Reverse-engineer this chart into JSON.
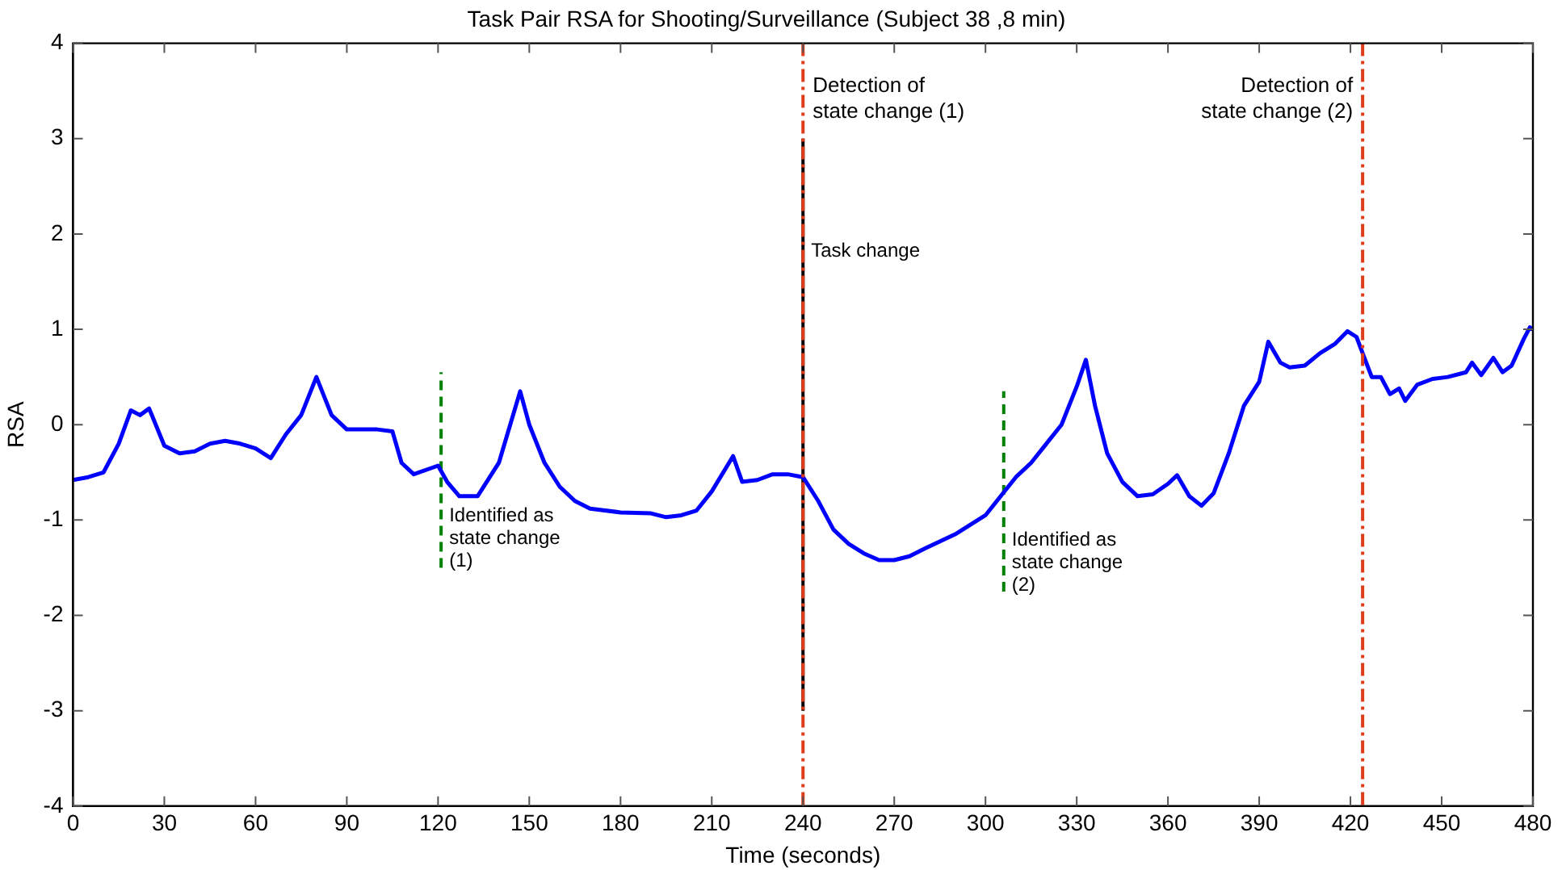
{
  "chart_data": {
    "type": "line",
    "title": "Task Pair RSA for Shooting/Surveillance (Subject 38 ,8 min)",
    "xlabel": "Time (seconds)",
    "ylabel": "RSA",
    "xlim": [
      0,
      480
    ],
    "xticks": [
      0,
      30,
      60,
      90,
      120,
      150,
      180,
      210,
      240,
      270,
      300,
      330,
      360,
      390,
      420,
      450,
      480
    ],
    "ylim": [
      -4,
      4
    ],
    "yticks": [
      -4,
      -3,
      -2,
      -1,
      0,
      1,
      2,
      3,
      4
    ],
    "grid": false,
    "legend": false,
    "series": [
      {
        "color": "#0000ff",
        "line_style": "solid",
        "x": [
          0,
          5,
          10,
          15,
          19,
          22,
          25,
          30,
          35,
          40,
          45,
          50,
          55,
          60,
          65,
          70,
          75,
          80,
          85,
          90,
          95,
          100,
          105,
          108,
          112,
          120,
          123,
          127,
          133,
          140,
          147,
          150,
          155,
          160,
          165,
          170,
          180,
          190,
          195,
          200,
          205,
          210,
          217,
          220,
          225,
          230,
          235,
          240,
          245,
          250,
          255,
          260,
          265,
          270,
          275,
          280,
          290,
          300,
          305,
          310,
          315,
          320,
          325,
          330,
          333,
          336,
          340,
          345,
          350,
          355,
          360,
          363,
          367,
          371,
          375,
          380,
          385,
          390,
          393,
          397,
          400,
          405,
          410,
          415,
          419,
          422,
          424,
          427,
          430,
          433,
          436,
          438,
          442,
          447,
          452,
          458,
          460,
          463,
          467,
          470,
          473,
          477,
          479,
          480
        ],
        "values": [
          -0.58,
          -0.55,
          -0.5,
          -0.2,
          0.15,
          0.1,
          0.17,
          -0.22,
          -0.3,
          -0.28,
          -0.2,
          -0.17,
          -0.2,
          -0.25,
          -0.35,
          -0.1,
          0.1,
          0.5,
          0.1,
          -0.05,
          -0.05,
          -0.05,
          -0.07,
          -0.4,
          -0.52,
          -0.43,
          -0.6,
          -0.75,
          -0.75,
          -0.4,
          0.35,
          0,
          -0.4,
          -0.65,
          -0.8,
          -0.88,
          -0.92,
          -0.93,
          -0.97,
          -0.95,
          -0.9,
          -0.7,
          -0.33,
          -0.6,
          -0.58,
          -0.52,
          -0.52,
          -0.55,
          -0.8,
          -1.1,
          -1.25,
          -1.35,
          -1.42,
          -1.42,
          -1.38,
          -1.3,
          -1.15,
          -0.95,
          -0.75,
          -0.55,
          -0.4,
          -0.2,
          0,
          0.4,
          0.68,
          0.2,
          -0.3,
          -0.6,
          -0.75,
          -0.73,
          -0.62,
          -0.53,
          -0.75,
          -0.85,
          -0.72,
          -0.3,
          0.2,
          0.45,
          0.87,
          0.65,
          0.6,
          0.62,
          0.75,
          0.85,
          0.98,
          0.92,
          0.75,
          0.5,
          0.5,
          0.32,
          0.38,
          0.25,
          0.42,
          0.48,
          0.5,
          0.55,
          0.65,
          0.52,
          0.7,
          0.55,
          0.62,
          0.9,
          1.02,
          1.0
        ]
      },
      {
        "name": "Task change",
        "color": "#000000",
        "line_style": "solid",
        "x": [
          240,
          240
        ],
        "values": [
          -3,
          3
        ]
      },
      {
        "name": "Identified as state change (1)",
        "color": "#008000",
        "line_style": "dashed",
        "x": [
          121,
          121
        ],
        "values": [
          -1.5,
          0.55
        ]
      },
      {
        "name": "Identified as state change (2)",
        "color": "#008000",
        "line_style": "dashed",
        "x": [
          306,
          306
        ],
        "values": [
          -1.75,
          0.35
        ]
      }
    ],
    "ref_lines": [
      {
        "axis": "x",
        "value": 240,
        "label": "Detection of state change (1)",
        "color": "#e03c1c",
        "line_style": "dashdot"
      },
      {
        "axis": "x",
        "value": 424,
        "label": "Detection of state change (2)",
        "color": "#e03c1c",
        "line_style": "dashdot"
      }
    ]
  }
}
